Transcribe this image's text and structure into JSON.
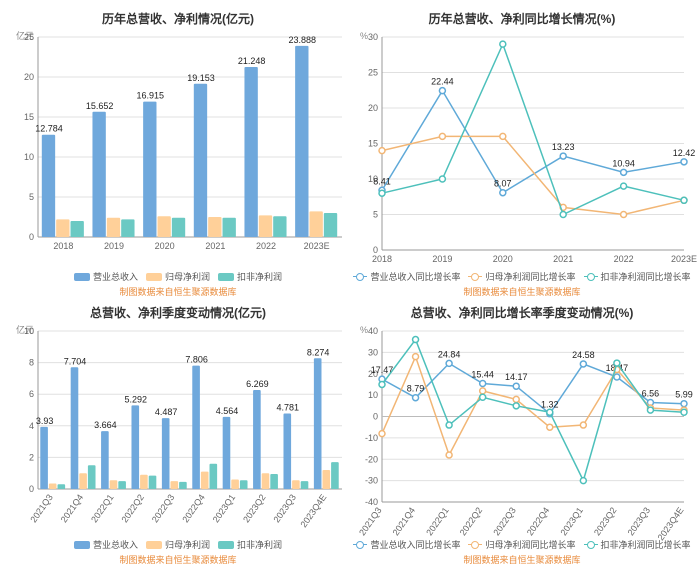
{
  "credit_text": "制图数据来自恒生聚源数据库",
  "colors": {
    "blue": "#6fa8dc",
    "orange": "#ffd099",
    "teal": "#6bc9c3",
    "line_blue": "#5fa9d8",
    "line_orange": "#f2b675",
    "line_teal": "#4dc0bb",
    "grid": "#e0e0e0",
    "axis": "#999999"
  },
  "panel1": {
    "title": "历年总营收、净利情况(亿元)",
    "type": "bar",
    "ylabel": "亿元",
    "ylim": [
      0,
      25
    ],
    "ytick_step": 5,
    "categories": [
      "2018",
      "2019",
      "2020",
      "2021",
      "2022",
      "2023E"
    ],
    "series": [
      {
        "name": "营业总收入",
        "color_key": "blue",
        "values": [
          12.784,
          15.652,
          16.915,
          19.153,
          21.248,
          23.888
        ],
        "show_labels": true
      },
      {
        "name": "归母净利润",
        "color_key": "orange",
        "values": [
          2.2,
          2.4,
          2.6,
          2.5,
          2.7,
          3.2
        ],
        "show_labels": false
      },
      {
        "name": "扣非净利润",
        "color_key": "teal",
        "values": [
          2.0,
          2.2,
          2.4,
          2.4,
          2.6,
          3.0
        ],
        "show_labels": false
      }
    ]
  },
  "panel2": {
    "title": "历年总营收、净利同比增长情况(%)",
    "type": "line",
    "ylabel": "%",
    "ylim": [
      0,
      30
    ],
    "ytick_step": 5,
    "categories": [
      "2018",
      "2019",
      "2020",
      "2021",
      "2022",
      "2023E"
    ],
    "series": [
      {
        "name": "营业总收入同比增长率",
        "color_key": "line_blue",
        "values": [
          8.41,
          22.44,
          8.07,
          13.23,
          10.94,
          12.42
        ],
        "labels": [
          "8.41",
          "22.44",
          "8.07",
          "13.23",
          "10.94",
          "12.42"
        ]
      },
      {
        "name": "归母净利润同比增长率",
        "color_key": "line_orange",
        "values": [
          14,
          16,
          16,
          6,
          5,
          7
        ],
        "labels": []
      },
      {
        "name": "扣非净利润同比增长率",
        "color_key": "line_teal",
        "values": [
          8,
          10,
          29,
          5,
          9,
          7
        ],
        "labels": []
      }
    ]
  },
  "panel3": {
    "title": "总营收、净利季度变动情况(亿元)",
    "type": "bar",
    "ylabel": "亿元",
    "ylim": [
      0,
      10
    ],
    "ytick_step": 2,
    "categories": [
      "2021Q3",
      "2021Q4",
      "2022Q1",
      "2022Q2",
      "2022Q3",
      "2022Q4",
      "2023Q1",
      "2023Q2",
      "2023Q3",
      "2023Q4E"
    ],
    "rotate_xticks": true,
    "series": [
      {
        "name": "营业总收入",
        "color_key": "blue",
        "values": [
          3.93,
          7.704,
          3.664,
          5.292,
          4.487,
          7.806,
          4.564,
          6.269,
          4.781,
          8.274
        ],
        "show_labels": true
      },
      {
        "name": "归母净利润",
        "color_key": "orange",
        "values": [
          0.35,
          1.0,
          0.55,
          0.9,
          0.5,
          1.1,
          0.6,
          1.0,
          0.55,
          1.2
        ],
        "show_labels": false
      },
      {
        "name": "扣非净利润",
        "color_key": "teal",
        "values": [
          0.3,
          1.5,
          0.5,
          0.85,
          0.45,
          1.6,
          0.55,
          0.95,
          0.5,
          1.7
        ],
        "show_labels": false
      }
    ]
  },
  "panel4": {
    "title": "总营收、净利同比增长率季度变动情况(%)",
    "type": "line",
    "ylabel": "%",
    "ylim": [
      -40,
      40
    ],
    "ytick_step": 10,
    "categories": [
      "2021Q3",
      "2021Q4",
      "2022Q1",
      "2022Q2",
      "2022Q3",
      "2022Q4",
      "2023Q1",
      "2023Q2",
      "2023Q3",
      "2023Q4E"
    ],
    "rotate_xticks": true,
    "series": [
      {
        "name": "营业总收入同比增长率",
        "color_key": "line_blue",
        "values": [
          17.47,
          8.79,
          24.84,
          15.44,
          14.17,
          1.32,
          24.58,
          18.47,
          6.56,
          5.99
        ],
        "labels": [
          "17.47",
          "8.79",
          "24.84",
          "15.44",
          "14.17",
          "1.32",
          "24.58",
          "18.47",
          "6.56",
          "5.99"
        ]
      },
      {
        "name": "归母净利润同比增长率",
        "color_key": "line_orange",
        "values": [
          -8,
          28,
          -18,
          12,
          8,
          -5,
          -4,
          22,
          4,
          3
        ],
        "labels": []
      },
      {
        "name": "扣非净利润同比增长率",
        "color_key": "line_teal",
        "values": [
          15,
          36,
          -4,
          9,
          5,
          2,
          -30,
          25,
          3,
          2
        ],
        "labels": []
      }
    ]
  }
}
